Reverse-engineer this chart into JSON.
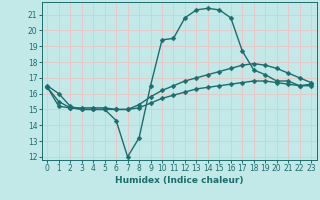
{
  "xlabel": "Humidex (Indice chaleur)",
  "ylabel": "",
  "bg_color": "#c2e8e8",
  "grid_color": "#e8c8c8",
  "line_color": "#1a6e6e",
  "xlim": [
    -0.5,
    23.5
  ],
  "ylim": [
    11.8,
    21.8
  ],
  "yticks": [
    12,
    13,
    14,
    15,
    16,
    17,
    18,
    19,
    20,
    21
  ],
  "xticks": [
    0,
    1,
    2,
    3,
    4,
    5,
    6,
    7,
    8,
    9,
    10,
    11,
    12,
    13,
    14,
    15,
    16,
    17,
    18,
    19,
    20,
    21,
    22,
    23
  ],
  "line1_x": [
    0,
    1,
    2,
    3,
    4,
    5,
    6,
    7,
    8,
    9,
    10,
    11,
    12,
    13,
    14,
    15,
    16,
    17,
    18,
    19,
    20,
    21,
    22,
    23
  ],
  "line1_y": [
    16.5,
    16.0,
    15.2,
    15.0,
    15.0,
    15.0,
    14.3,
    12.0,
    13.2,
    16.5,
    19.4,
    19.5,
    20.8,
    21.3,
    21.4,
    21.3,
    20.8,
    18.7,
    17.5,
    17.2,
    16.8,
    16.8,
    16.5,
    16.6
  ],
  "line2_x": [
    0,
    1,
    2,
    3,
    4,
    5,
    6,
    7,
    8,
    9,
    10,
    11,
    12,
    13,
    14,
    15,
    16,
    17,
    18,
    19,
    20,
    21,
    22,
    23
  ],
  "line2_y": [
    16.4,
    15.2,
    15.1,
    15.1,
    15.1,
    15.1,
    15.0,
    15.0,
    15.3,
    15.8,
    16.2,
    16.5,
    16.8,
    17.0,
    17.2,
    17.4,
    17.6,
    17.8,
    17.9,
    17.8,
    17.6,
    17.3,
    17.0,
    16.7
  ],
  "line3_x": [
    0,
    1,
    2,
    3,
    4,
    5,
    6,
    7,
    8,
    9,
    10,
    11,
    12,
    13,
    14,
    15,
    16,
    17,
    18,
    19,
    20,
    21,
    22,
    23
  ],
  "line3_y": [
    16.4,
    15.5,
    15.1,
    15.0,
    15.0,
    15.0,
    15.0,
    15.0,
    15.1,
    15.4,
    15.7,
    15.9,
    16.1,
    16.3,
    16.4,
    16.5,
    16.6,
    16.7,
    16.8,
    16.8,
    16.7,
    16.6,
    16.5,
    16.5
  ],
  "marker_size": 2.5,
  "line_width": 1.0
}
